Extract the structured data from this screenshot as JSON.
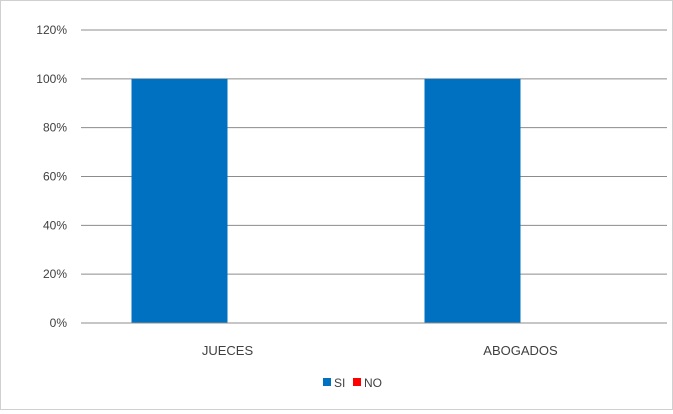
{
  "chart_data": {
    "type": "bar",
    "categories": [
      "JUECES",
      "ABOGADOS"
    ],
    "series": [
      {
        "name": "SI",
        "color": "#0070C0",
        "values": [
          100,
          100
        ]
      },
      {
        "name": "NO",
        "color": "#FF0000",
        "values": [
          0,
          0
        ]
      }
    ],
    "ylim": [
      0,
      120
    ],
    "yticks": [
      "0%",
      "20%",
      "40%",
      "60%",
      "80%",
      "100%",
      "120%"
    ],
    "ytick_values": [
      0,
      20,
      40,
      60,
      80,
      100,
      120
    ],
    "grid": true,
    "legend_position": "bottom",
    "title": "",
    "xlabel": "",
    "ylabel": ""
  }
}
